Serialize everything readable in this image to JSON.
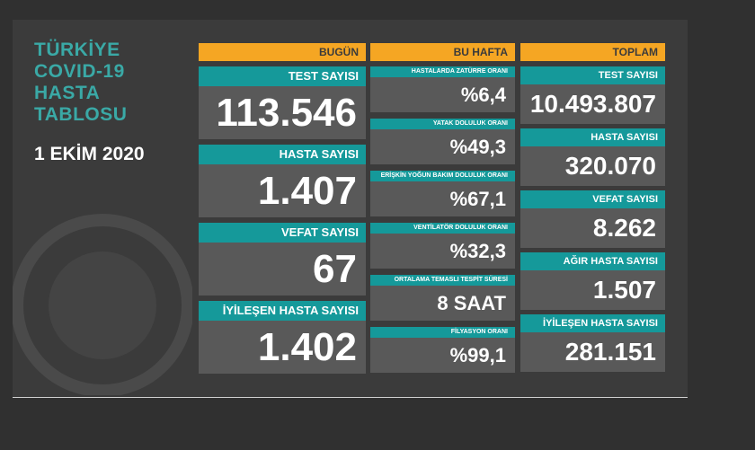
{
  "title": "TÜRKİYE COVID-19 HASTA TABLOSU",
  "date": "1 EKİM 2020",
  "today": {
    "header": "BUGÜN",
    "items": [
      {
        "label": "TEST SAYISI",
        "value": "113.546"
      },
      {
        "label": "HASTA SAYISI",
        "value": "1.407"
      },
      {
        "label": "VEFAT SAYISI",
        "value": "67"
      },
      {
        "label": "İYİLEŞEN HASTA SAYISI",
        "value": "1.402"
      }
    ]
  },
  "week": {
    "header": "BU HAFTA",
    "items": [
      {
        "label": "HASTALARDA ZATÜRRE ORANI",
        "value": "%6,4"
      },
      {
        "label": "YATAK DOLULUK ORANI",
        "value": "%49,3"
      },
      {
        "label": "ERİŞKİN YOĞUN BAKIM DOLULUK ORANI",
        "value": "%67,1"
      },
      {
        "label": "VENTİLATÖR DOLULUK ORANI",
        "value": "%32,3"
      },
      {
        "label": "ORTALAMA TEMASLI TESPİT SÜRESİ",
        "value": "8 SAAT"
      },
      {
        "label": "FİLYASYON ORANI",
        "value": "%99,1"
      }
    ]
  },
  "total": {
    "header": "TOPLAM",
    "items": [
      {
        "label": "TEST SAYISI",
        "value": "10.493.807"
      },
      {
        "label": "HASTA SAYISI",
        "value": "320.070"
      },
      {
        "label": "VEFAT SAYISI",
        "value": "8.262"
      },
      {
        "label": "AĞIR HASTA SAYISI",
        "value": "1.507"
      },
      {
        "label": "İYİLEŞEN HASTA SAYISI",
        "value": "281.151"
      }
    ]
  }
}
